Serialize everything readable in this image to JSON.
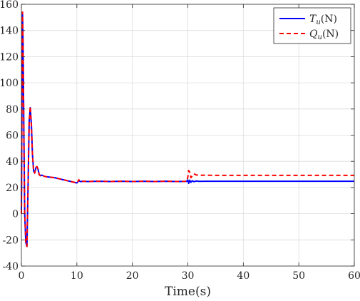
{
  "chart_data": {
    "type": "line",
    "title": "",
    "xlabel": "Time(s)",
    "ylabel": "",
    "xlim": [
      0,
      60
    ],
    "ylim": [
      -40,
      160
    ],
    "xticks": [
      0,
      10,
      20,
      30,
      40,
      50,
      60
    ],
    "yticks": [
      -40,
      -20,
      0,
      20,
      40,
      60,
      80,
      100,
      120,
      140,
      160
    ],
    "grid": true,
    "legend_position": "top-right",
    "series": [
      {
        "name": "Tu(N)",
        "legend_main": "T",
        "legend_sub": "u",
        "legend_unit": "(N)",
        "color": "#0000ff",
        "line_style": "solid",
        "x": [
          0,
          0.12,
          0.2,
          0.3,
          0.45,
          0.6,
          0.8,
          1.0,
          1.2,
          1.4,
          1.6,
          1.8,
          2.0,
          2.2,
          2.4,
          2.6,
          2.8,
          3.0,
          3.2,
          3.4,
          3.6,
          3.9,
          4.2,
          4.6,
          5.0,
          6.0,
          7.0,
          8.0,
          9.0,
          10.0,
          10.2,
          10.35,
          10.5,
          10.7,
          11.0,
          12,
          14,
          16,
          18,
          20,
          22,
          24,
          26,
          28,
          29.8,
          30.0,
          30.15,
          30.35,
          30.55,
          30.8,
          31.1,
          31.5,
          32,
          33,
          35,
          40,
          45,
          50,
          55,
          60
        ],
        "values": [
          0,
          100,
          154,
          130,
          60,
          0,
          -22,
          -25,
          20,
          70,
          81,
          68,
          45,
          33,
          31,
          35,
          36,
          34,
          30,
          29,
          29.5,
          29,
          28.5,
          28.2,
          28,
          27.5,
          26.5,
          25.5,
          24.5,
          23.5,
          24.5,
          25.5,
          24.8,
          24.5,
          24.8,
          24.6,
          24.8,
          24.6,
          24.8,
          24.6,
          24.8,
          24.6,
          24.8,
          24.6,
          24.7,
          25.8,
          23.2,
          25.6,
          24.0,
          25.2,
          24.4,
          25.0,
          24.7,
          24.8,
          24.8,
          24.8,
          24.8,
          24.8,
          24.8,
          24.8
        ]
      },
      {
        "name": "Qu(N)",
        "legend_main": "Q",
        "legend_sub": "u",
        "legend_unit": "(N)",
        "color": "#ff0000",
        "line_style": "dashed",
        "x": [
          0,
          0.12,
          0.2,
          0.3,
          0.45,
          0.6,
          0.8,
          1.0,
          1.2,
          1.4,
          1.6,
          1.8,
          2.0,
          2.2,
          2.4,
          2.6,
          2.8,
          3.0,
          3.2,
          3.4,
          3.6,
          3.9,
          4.2,
          4.6,
          5.0,
          6.0,
          7.0,
          8.0,
          9.0,
          10.0,
          10.2,
          10.35,
          10.5,
          10.7,
          11.0,
          12,
          14,
          16,
          18,
          20,
          22,
          24,
          26,
          28,
          29.8,
          30.0,
          30.15,
          30.35,
          30.55,
          30.8,
          31.1,
          31.5,
          32,
          33,
          35,
          40,
          45,
          50,
          55,
          60
        ],
        "values": [
          0,
          100,
          154,
          130,
          60,
          0,
          -22,
          -25,
          20,
          70,
          82,
          68,
          45,
          33,
          31,
          35,
          36,
          34,
          30,
          29,
          29.5,
          29,
          28.5,
          28.2,
          28,
          27.5,
          26.5,
          25.5,
          24.5,
          23.5,
          24.5,
          26.0,
          24.8,
          24.5,
          24.8,
          24.6,
          24.8,
          24.6,
          24.8,
          24.6,
          24.8,
          24.6,
          24.8,
          24.6,
          24.7,
          28.0,
          33.0,
          31.5,
          27.5,
          29.0,
          30.5,
          29.6,
          29.3,
          29.4,
          29.3,
          29.3,
          29.3,
          29.3,
          29.3,
          29.3
        ]
      }
    ]
  }
}
